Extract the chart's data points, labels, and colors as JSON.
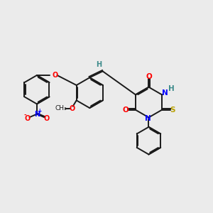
{
  "bg_color": "#ebebeb",
  "bond_color": "#1a1a1a",
  "bond_width": 1.4,
  "figsize": [
    3.0,
    3.0
  ],
  "dpi": 100,
  "xlim": [
    0,
    10
  ],
  "ylim": [
    0,
    10
  ]
}
